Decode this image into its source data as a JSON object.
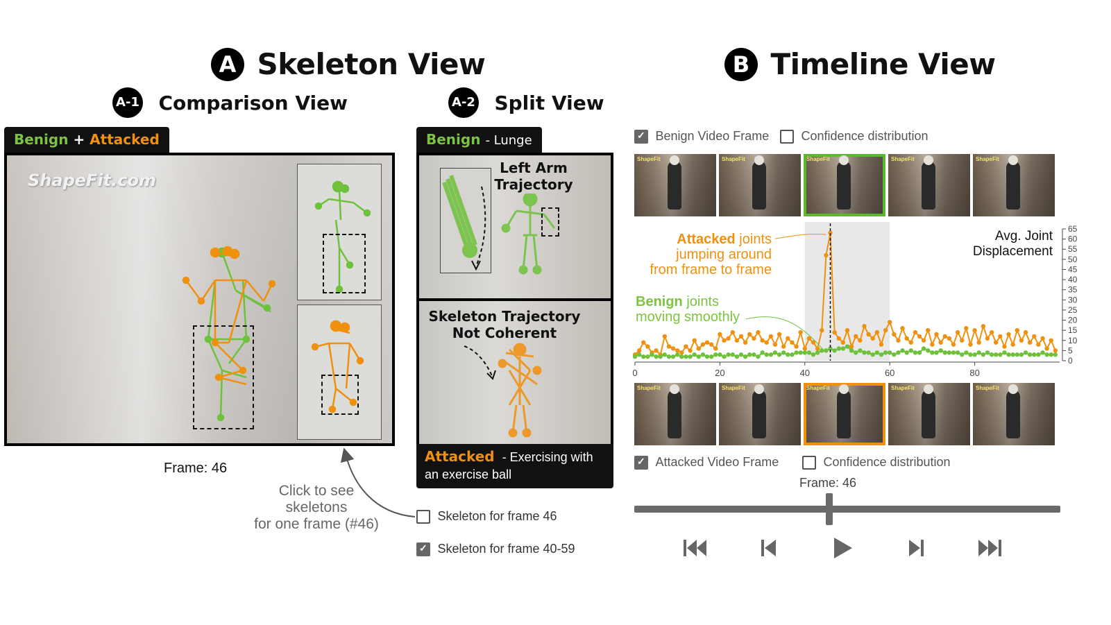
{
  "skeleton_view": {
    "badge": "A",
    "title": "Skeleton View",
    "comparison": {
      "badge": "A-1",
      "title": "Comparison View",
      "tab_benign": "Benign",
      "tab_plus": "+",
      "tab_attacked": "Attacked",
      "watermark": "ShapeFit.com",
      "frame_label": "Frame: 46",
      "hint": [
        "Click to see",
        "skeletons",
        "for one frame (#46)"
      ]
    },
    "split": {
      "badge": "A-2",
      "title": "Split View",
      "benign_tab": "Benign",
      "benign_suffix": "- Lunge",
      "benign_caption": [
        "Left Arm",
        "Trajectory"
      ],
      "attacked_caption": [
        "Skeleton Trajectory",
        "Not Coherent"
      ],
      "attacked_tab": "Attacked",
      "attacked_suffix": "- Exercising with",
      "attacked_suffix2": "an exercise ball",
      "checkboxes": [
        {
          "label": "Skeleton for frame 46",
          "checked": false
        },
        {
          "label": "Skeleton for frame 40-59",
          "checked": true
        }
      ]
    }
  },
  "timeline_view": {
    "badge": "B",
    "title": "Timeline View",
    "top_controls": [
      {
        "label": "Benign Video Frame",
        "checked": true
      },
      {
        "label": "Confidence distribution",
        "checked": false
      }
    ],
    "bottom_controls": [
      {
        "label": "Attacked Video Frame",
        "checked": true
      },
      {
        "label": "Confidence distribution",
        "checked": false
      }
    ],
    "frame_label": "Frame: 46",
    "thumb_logo": "ShapeFit",
    "annotations": {
      "attacked_word": "Attacked",
      "attacked_rest": [
        " joints",
        "jumping around",
        "from frame to frame"
      ],
      "benign_word": "Benign",
      "benign_rest": [
        " joints",
        "moving smoothly"
      ]
    },
    "buttons": [
      "skip-to-start",
      "step-back",
      "play",
      "step-forward",
      "skip-to-end"
    ]
  },
  "chart_data": {
    "type": "line",
    "ylabel": "Avg. Joint Displacement",
    "xlim": [
      0,
      100
    ],
    "ylim": [
      0,
      65
    ],
    "xticks": [
      0,
      20,
      40,
      60,
      80
    ],
    "yticks": [
      0,
      5,
      10,
      15,
      20,
      25,
      30,
      35,
      40,
      45,
      50,
      55,
      60,
      65
    ],
    "highlight_range": [
      40,
      60
    ],
    "current_frame": 46,
    "series": [
      {
        "name": "Attacked",
        "color": "#f0900f",
        "values": [
          3,
          5,
          9,
          7,
          4,
          5,
          3,
          12,
          7,
          6,
          5,
          4,
          7,
          5,
          10,
          6,
          8,
          9,
          8,
          6,
          13,
          10,
          11,
          14,
          10,
          12,
          9,
          13,
          11,
          14,
          10,
          9,
          12,
          8,
          13,
          7,
          11,
          9,
          7,
          14,
          6,
          11,
          9,
          6,
          15,
          52,
          63,
          14,
          11,
          9,
          15,
          7,
          12,
          10,
          17,
          13,
          11,
          14,
          8,
          15,
          19,
          13,
          10,
          16,
          11,
          9,
          14,
          12,
          10,
          15,
          8,
          13,
          9,
          12,
          11,
          8,
          14,
          10,
          16,
          8,
          15,
          9,
          17,
          11,
          14,
          9,
          12,
          7,
          13,
          8,
          15,
          10,
          14,
          9,
          12,
          8,
          11,
          6,
          10,
          5
        ]
      },
      {
        "name": "Benign",
        "color": "#6ec13a",
        "values": [
          2,
          3,
          2,
          2,
          3,
          2,
          2,
          3,
          2,
          2,
          3,
          2,
          2,
          2,
          3,
          2,
          3,
          2,
          2,
          3,
          3,
          2,
          3,
          3,
          2,
          3,
          2,
          3,
          3,
          2,
          4,
          3,
          3,
          4,
          3,
          4,
          3,
          3,
          4,
          4,
          4,
          4,
          3,
          4,
          5,
          5,
          6,
          5,
          6,
          6,
          7,
          5,
          4,
          5,
          4,
          4,
          3,
          4,
          3,
          4,
          4,
          3,
          4,
          5,
          4,
          5,
          4,
          4,
          6,
          5,
          4,
          4,
          5,
          4,
          4,
          4,
          4,
          3,
          4,
          3,
          3,
          4,
          3,
          4,
          3,
          3,
          3,
          4,
          3,
          3,
          3,
          3,
          4,
          3,
          3,
          3,
          4,
          3,
          3,
          3
        ]
      }
    ]
  },
  "colors": {
    "benign": "#6ec13a",
    "attacked": "#f0900f",
    "highlight": "#e8e8e8"
  }
}
